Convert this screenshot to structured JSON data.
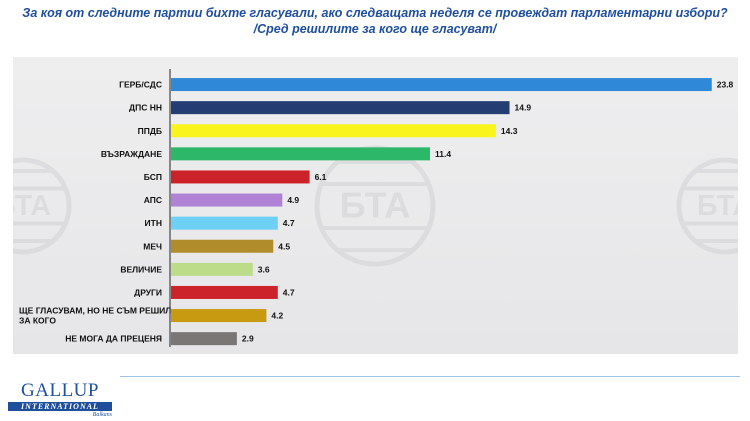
{
  "header": {
    "title_line1": "За коя от следните партии бихте гласували, ако следващата неделя се провеждат парламентарни избори?",
    "title_line2": "/Сред решилите за кого ще гласуват/"
  },
  "watermark": {
    "text": "БТА",
    "icon": "bta-watermark-icon"
  },
  "logo": {
    "word": "GALLUP",
    "band": "INTERNATIONAL",
    "sub": "Balkans",
    "color": "#1f4f9b"
  },
  "chart_data": {
    "type": "bar",
    "orientation": "horizontal",
    "categories": [
      "ГЕРБ/СДС",
      "ДПС НН",
      "ППДБ",
      "ВЪЗРАЖДАНЕ",
      "БСП",
      "АПС",
      "ИТН",
      "МЕЧ",
      "ВЕЛИЧИЕ",
      "ДРУГИ",
      "ЩЕ ГЛАСУВАМ, НО НЕ СЪМ РЕШИЛ ЗА КОГО",
      "НЕ МОГА ДА ПРЕЦЕНЯ"
    ],
    "values": [
      23.8,
      14.9,
      14.3,
      11.4,
      6.1,
      4.9,
      4.7,
      4.5,
      3.6,
      4.7,
      4.2,
      2.9
    ],
    "colors": [
      "#2f88d8",
      "#243e73",
      "#f9f51c",
      "#2db768",
      "#cc2229",
      "#b082d6",
      "#6fd0f5",
      "#b08c2a",
      "#bddc8a",
      "#cc2229",
      "#c89a12",
      "#7a7676"
    ],
    "xlim": [
      0,
      25
    ],
    "grid": false,
    "legend": "none"
  }
}
